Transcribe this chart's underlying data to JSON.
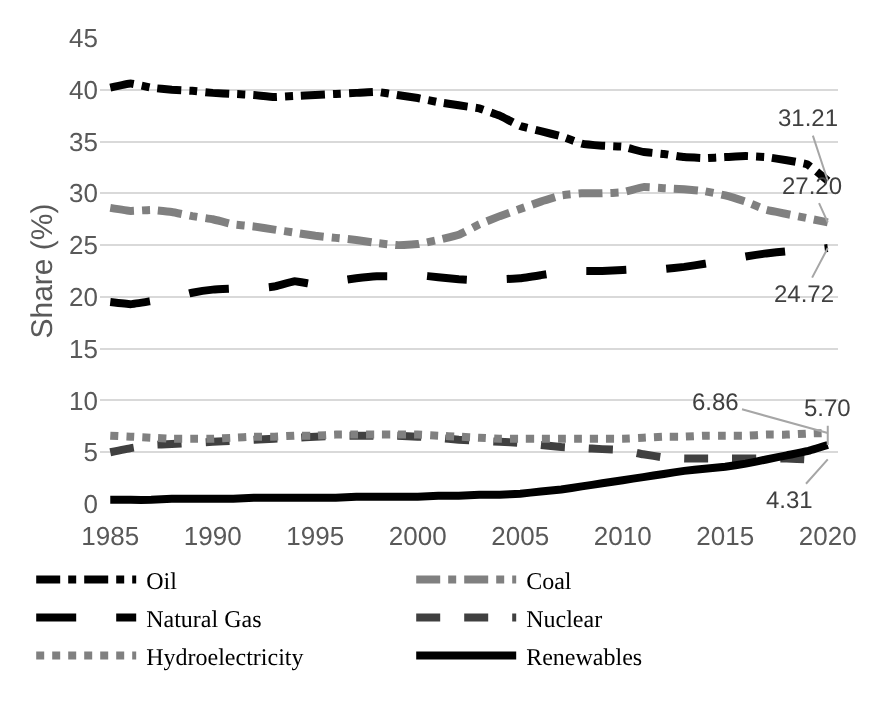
{
  "chart_data": {
    "type": "line",
    "ylabel": "Share (%)",
    "x": [
      1985,
      1986,
      1987,
      1988,
      1989,
      1990,
      1991,
      1992,
      1993,
      1994,
      1995,
      1996,
      1997,
      1998,
      1999,
      2000,
      2001,
      2002,
      2003,
      2004,
      2005,
      2006,
      2007,
      2008,
      2009,
      2010,
      2011,
      2012,
      2013,
      2014,
      2015,
      2016,
      2017,
      2018,
      2019,
      2020
    ],
    "xlim": [
      1984.5,
      2020.5
    ],
    "xticks": [
      1985,
      1990,
      1995,
      2000,
      2005,
      2010,
      2015,
      2020
    ],
    "ylim": [
      0,
      45
    ],
    "yticks": [
      0,
      5,
      10,
      15,
      20,
      25,
      30,
      35,
      40,
      45
    ],
    "grid": "y",
    "legend": "bottom",
    "marker": "none",
    "series": [
      {
        "name": "Oil",
        "color": "#000000",
        "line_style": "dashdot",
        "values": [
          40.2,
          40.6,
          40.2,
          40.0,
          39.9,
          39.7,
          39.6,
          39.5,
          39.3,
          39.4,
          39.5,
          39.6,
          39.7,
          39.8,
          39.5,
          39.2,
          38.8,
          38.5,
          38.2,
          37.5,
          36.5,
          36.0,
          35.5,
          34.8,
          34.6,
          34.5,
          34.0,
          33.8,
          33.5,
          33.4,
          33.5,
          33.6,
          33.5,
          33.2,
          32.8,
          31.21
        ],
        "value_labels": [
          null,
          null,
          null,
          null,
          null,
          null,
          null,
          null,
          null,
          null,
          null,
          null,
          null,
          null,
          null,
          null,
          null,
          null,
          null,
          null,
          null,
          null,
          null,
          null,
          null,
          null,
          null,
          null,
          null,
          null,
          null,
          null,
          null,
          null,
          null,
          "31.21"
        ]
      },
      {
        "name": "Coal",
        "color": "#808080",
        "line_style": "dashdot",
        "values": [
          28.6,
          28.3,
          28.4,
          28.2,
          27.8,
          27.5,
          27.0,
          26.8,
          26.5,
          26.2,
          25.9,
          25.7,
          25.5,
          25.2,
          25.0,
          25.1,
          25.5,
          26.0,
          27.0,
          27.8,
          28.5,
          29.2,
          29.8,
          30.0,
          30.0,
          30.1,
          30.6,
          30.5,
          30.4,
          30.2,
          29.8,
          29.2,
          28.4,
          28.0,
          27.6,
          27.2
        ],
        "value_labels": [
          null,
          null,
          null,
          null,
          null,
          null,
          null,
          null,
          null,
          null,
          null,
          null,
          null,
          null,
          null,
          null,
          null,
          null,
          null,
          null,
          null,
          null,
          null,
          null,
          null,
          null,
          null,
          null,
          null,
          null,
          null,
          null,
          null,
          null,
          null,
          "27.20"
        ]
      },
      {
        "name": "Natural Gas",
        "color": "#000000",
        "line_style": "longdash",
        "values": [
          19.5,
          19.3,
          19.6,
          19.9,
          20.4,
          20.7,
          20.8,
          20.8,
          21.0,
          21.5,
          21.2,
          21.5,
          21.8,
          22.0,
          22.0,
          22.1,
          21.9,
          21.7,
          21.6,
          21.7,
          21.8,
          22.1,
          22.4,
          22.5,
          22.5,
          22.6,
          22.7,
          22.7,
          22.9,
          23.2,
          23.5,
          23.9,
          24.2,
          24.4,
          24.5,
          24.72
        ],
        "value_labels": [
          null,
          null,
          null,
          null,
          null,
          null,
          null,
          null,
          null,
          null,
          null,
          null,
          null,
          null,
          null,
          null,
          null,
          null,
          null,
          null,
          null,
          null,
          null,
          null,
          null,
          null,
          null,
          null,
          null,
          null,
          null,
          null,
          null,
          null,
          null,
          "24.72"
        ]
      },
      {
        "name": "Nuclear",
        "color": "#404040",
        "line_style": "dashed",
        "values": [
          5.0,
          5.4,
          5.7,
          5.8,
          5.9,
          6.0,
          6.1,
          6.2,
          6.3,
          6.4,
          6.5,
          6.6,
          6.6,
          6.6,
          6.6,
          6.5,
          6.4,
          6.2,
          6.1,
          6.0,
          5.9,
          5.7,
          5.5,
          5.4,
          5.3,
          5.2,
          4.8,
          4.5,
          4.4,
          4.4,
          4.4,
          4.4,
          4.4,
          4.4,
          4.3,
          4.31
        ],
        "value_labels": [
          null,
          null,
          null,
          null,
          null,
          null,
          null,
          null,
          null,
          null,
          null,
          null,
          null,
          null,
          null,
          null,
          null,
          null,
          null,
          null,
          null,
          null,
          null,
          null,
          null,
          null,
          null,
          null,
          null,
          null,
          null,
          null,
          null,
          null,
          null,
          "4.31"
        ]
      },
      {
        "name": "Hydroelectricity",
        "color": "#808080",
        "line_style": "dotted",
        "values": [
          6.6,
          6.5,
          6.4,
          6.3,
          6.3,
          6.3,
          6.4,
          6.5,
          6.5,
          6.6,
          6.6,
          6.7,
          6.7,
          6.7,
          6.7,
          6.7,
          6.6,
          6.5,
          6.4,
          6.3,
          6.3,
          6.3,
          6.3,
          6.3,
          6.3,
          6.3,
          6.4,
          6.5,
          6.5,
          6.6,
          6.6,
          6.6,
          6.7,
          6.7,
          6.8,
          6.86
        ],
        "value_labels": [
          null,
          null,
          null,
          null,
          null,
          null,
          null,
          null,
          null,
          null,
          null,
          null,
          null,
          null,
          null,
          null,
          null,
          null,
          null,
          null,
          null,
          null,
          null,
          null,
          null,
          null,
          null,
          null,
          null,
          null,
          null,
          null,
          null,
          null,
          null,
          "6.86"
        ]
      },
      {
        "name": "Renewables",
        "color": "#000000",
        "line_style": "solid",
        "values": [
          0.4,
          0.4,
          0.4,
          0.5,
          0.5,
          0.5,
          0.5,
          0.6,
          0.6,
          0.6,
          0.6,
          0.6,
          0.7,
          0.7,
          0.7,
          0.7,
          0.8,
          0.8,
          0.9,
          0.9,
          1.0,
          1.2,
          1.4,
          1.7,
          2.0,
          2.3,
          2.6,
          2.9,
          3.2,
          3.4,
          3.6,
          3.9,
          4.3,
          4.7,
          5.1,
          5.7
        ],
        "value_labels": [
          null,
          null,
          null,
          null,
          null,
          null,
          null,
          null,
          null,
          null,
          null,
          null,
          null,
          null,
          null,
          null,
          null,
          null,
          null,
          null,
          null,
          null,
          null,
          null,
          null,
          null,
          null,
          null,
          null,
          null,
          null,
          null,
          null,
          null,
          null,
          "5.70"
        ]
      }
    ]
  }
}
